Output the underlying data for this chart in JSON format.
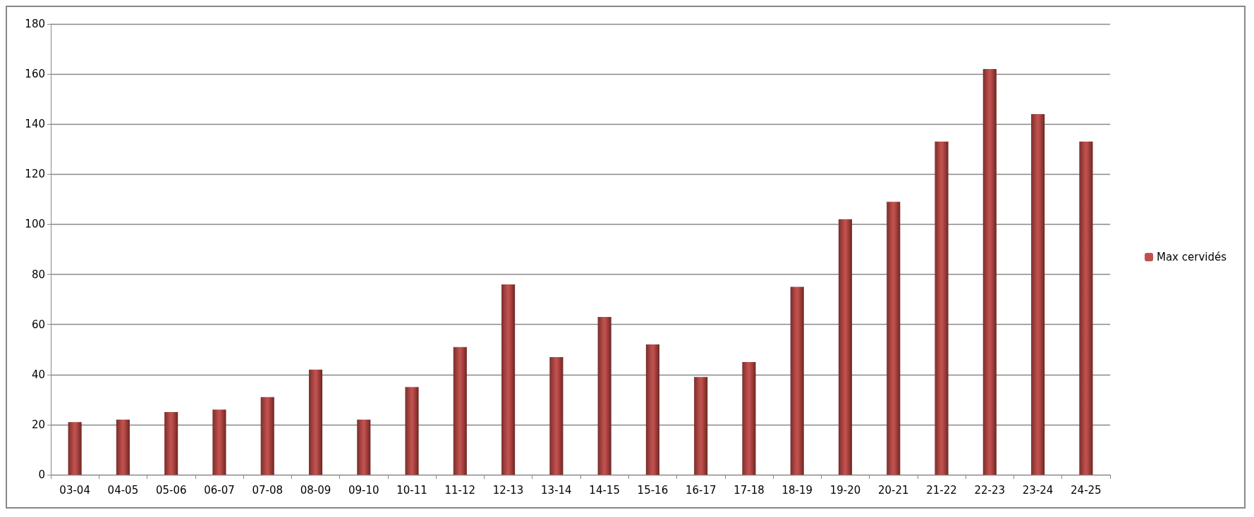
{
  "chart_data": {
    "type": "bar",
    "categories": [
      "03-04",
      "04-05",
      "05-06",
      "06-07",
      "07-08",
      "08-09",
      "09-10",
      "10-11",
      "11-12",
      "12-13",
      "13-14",
      "14-15",
      "15-16",
      "16-17",
      "17-18",
      "18-19",
      "19-20",
      "20-21",
      "21-22",
      "22-23",
      "23-24",
      "24-25"
    ],
    "series": [
      {
        "name": "Max cervidés",
        "color": "#c0504d",
        "values": [
          21,
          22,
          25,
          26,
          31,
          42,
          22,
          35,
          51,
          76,
          47,
          63,
          52,
          39,
          45,
          75,
          102,
          109,
          133,
          162,
          144,
          133
        ]
      }
    ],
    "ylim": [
      0,
      180
    ],
    "yticks": [
      0,
      20,
      40,
      60,
      80,
      100,
      120,
      140,
      160,
      180
    ],
    "grid": "y",
    "legend": "right"
  }
}
